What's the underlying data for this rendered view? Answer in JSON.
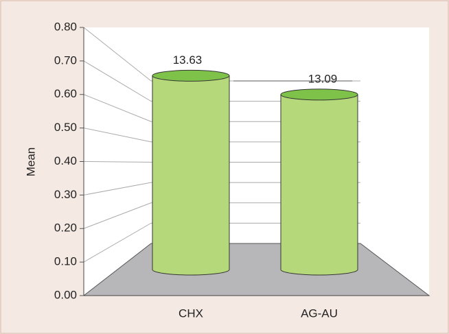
{
  "chart_data": {
    "type": "bar3d",
    "categories": [
      "CHX",
      "AG-AU"
    ],
    "values": [
      0.72,
      0.65
    ],
    "annotations": [
      "13.63",
      "13.09"
    ],
    "color": "#b5d97a",
    "top_color": "#7fc24a",
    "y_label": "Mean",
    "ylim": [
      0,
      0.8
    ],
    "yticks": [
      {
        "value": 0,
        "label": "0.00"
      },
      {
        "value": 0.1,
        "label": "0.10"
      },
      {
        "value": 0.2,
        "label": "0.20"
      },
      {
        "value": 0.3,
        "label": "0.30"
      },
      {
        "value": 0.4,
        "label": "0.40"
      },
      {
        "value": 0.5,
        "label": "0.50"
      },
      {
        "value": 0.6,
        "label": "0.60"
      },
      {
        "value": 0.7,
        "label": "0.70"
      },
      {
        "value": 0.8,
        "label": "0.80"
      }
    ],
    "grid": true
  }
}
